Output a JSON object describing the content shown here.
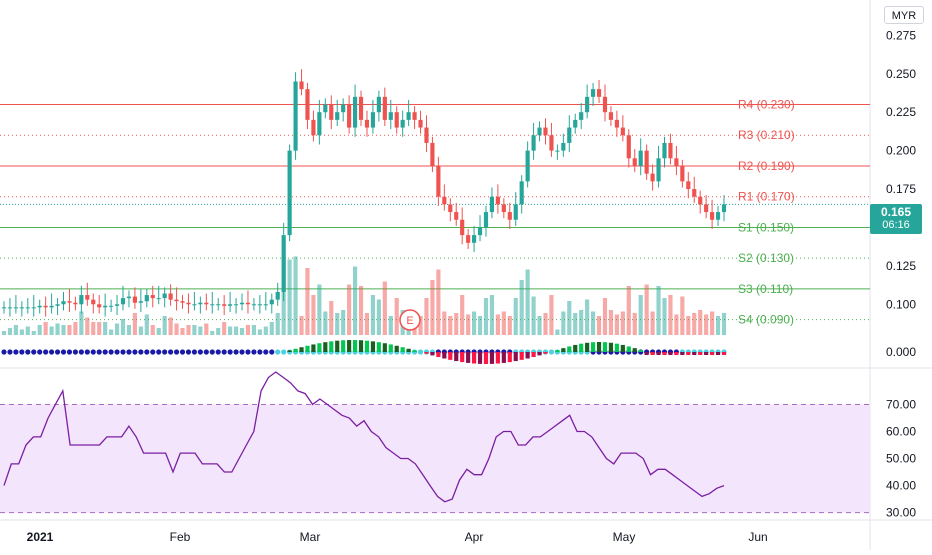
{
  "currency": "MYR",
  "last_price": {
    "value": "0.165",
    "countdown": "06:16",
    "color": "#26a69a"
  },
  "earnings_marker": "E",
  "colors": {
    "up": "#26a69a",
    "down": "#ef5350",
    "resistance": "#ef5350",
    "support": "#4caf50",
    "rsi_line": "#7b1fa2",
    "rsi_band": "#f3e5fc",
    "squeeze_on": "#1a1aa6",
    "squeeze_off": "#4dd0e1",
    "mom_up_strong": "#00c853",
    "mom_up_weak": "#1b5e20",
    "mom_dn_strong": "#ff1744",
    "mom_dn_weak": "#880e4f"
  },
  "chart_data": [
    {
      "type": "candlestick",
      "title": "",
      "x_ticks": [
        "2021",
        "Feb",
        "Mar",
        "Apr",
        "May",
        "Jun"
      ],
      "y_ticks": [
        "0.275",
        "0.250",
        "0.225",
        "0.200",
        "0.175",
        "0.150",
        "0.125",
        "0.100"
      ],
      "ylim": [
        0.08,
        0.285
      ],
      "close": [
        0.098,
        0.098,
        0.098,
        0.098,
        0.098,
        0.098,
        0.099,
        0.098,
        0.099,
        0.1,
        0.102,
        0.101,
        0.1,
        0.106,
        0.103,
        0.1,
        0.098,
        0.099,
        0.099,
        0.1,
        0.104,
        0.105,
        0.101,
        0.102,
        0.106,
        0.104,
        0.104,
        0.107,
        0.103,
        0.102,
        0.101,
        0.1,
        0.1,
        0.101,
        0.1,
        0.1,
        0.1,
        0.099,
        0.1,
        0.1,
        0.101,
        0.1,
        0.1,
        0.1,
        0.1,
        0.103,
        0.108,
        0.145,
        0.2,
        0.245,
        0.24,
        0.22,
        0.21,
        0.225,
        0.23,
        0.22,
        0.225,
        0.23,
        0.215,
        0.235,
        0.22,
        0.215,
        0.225,
        0.235,
        0.22,
        0.225,
        0.215,
        0.22,
        0.225,
        0.22,
        0.215,
        0.205,
        0.19,
        0.17,
        0.165,
        0.16,
        0.155,
        0.145,
        0.14,
        0.145,
        0.15,
        0.16,
        0.17,
        0.165,
        0.16,
        0.155,
        0.165,
        0.18,
        0.2,
        0.21,
        0.215,
        0.21,
        0.2,
        0.2,
        0.205,
        0.215,
        0.22,
        0.225,
        0.235,
        0.24,
        0.235,
        0.225,
        0.22,
        0.215,
        0.21,
        0.195,
        0.19,
        0.2,
        0.185,
        0.18,
        0.195,
        0.205,
        0.195,
        0.19,
        0.18,
        0.175,
        0.17,
        0.165,
        0.16,
        0.155,
        0.16,
        0.165
      ],
      "rsi": {
        "ticks": [
          "70.00",
          "60.00",
          "50.00",
          "40.00",
          "30.00"
        ],
        "upper": 70,
        "lower": 30,
        "values": [
          40,
          48,
          48,
          55,
          58,
          58,
          65,
          70,
          75,
          55,
          55,
          55,
          55,
          55,
          58,
          58,
          58,
          62,
          58,
          52,
          52,
          52,
          52,
          45,
          52,
          52,
          52,
          48,
          48,
          48,
          45,
          45,
          50,
          55,
          60,
          75,
          80,
          82,
          80,
          78,
          75,
          74,
          70,
          72,
          70,
          68,
          66,
          65,
          62,
          64,
          60,
          58,
          54,
          52,
          50,
          50,
          48,
          44,
          40,
          36,
          34,
          35,
          42,
          46,
          44,
          44,
          50,
          58,
          60,
          60,
          55,
          55,
          58,
          58,
          60,
          62,
          64,
          66,
          60,
          60,
          58,
          54,
          50,
          48,
          52,
          52,
          52,
          50,
          44,
          46,
          46,
          44,
          42,
          40,
          38,
          36,
          37,
          39,
          40
        ],
        "ylim": [
          28,
          82
        ]
      },
      "zero_tick": "0.000"
    }
  ],
  "resistance_levels": [
    {
      "label": "R4 (0.230)",
      "value": 0.23,
      "style": "solid"
    },
    {
      "label": "R3 (0.210)",
      "value": 0.21,
      "style": "dotted"
    },
    {
      "label": "R2 (0.190)",
      "value": 0.19,
      "style": "solid"
    },
    {
      "label": "R1 (0.170)",
      "value": 0.17,
      "style": "dotted"
    }
  ],
  "support_levels": [
    {
      "label": "S1 (0.150)",
      "value": 0.15,
      "style": "solid"
    },
    {
      "label": "S2 (0.130)",
      "value": 0.13,
      "style": "dotted"
    },
    {
      "label": "S3 (0.110)",
      "value": 0.11,
      "style": "solid"
    },
    {
      "label": "S4 (0.090)",
      "value": 0.09,
      "style": "dotted"
    }
  ]
}
